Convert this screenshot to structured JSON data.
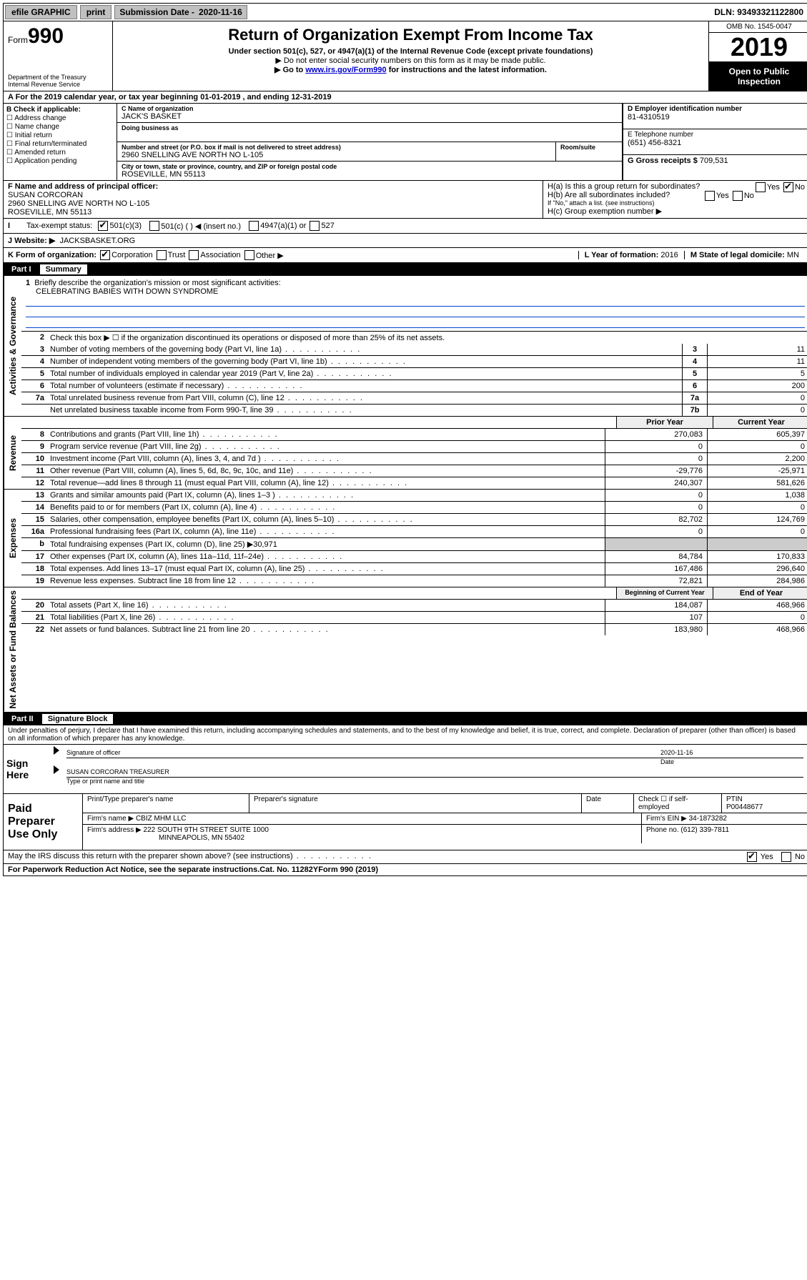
{
  "topbar": {
    "efile": "efile GRAPHIC",
    "print": "print",
    "submission_label": "Submission Date - ",
    "submission_date": "2020-11-16",
    "dln_label": "DLN: ",
    "dln": "93493321122800"
  },
  "header": {
    "form_word": "Form",
    "form_num": "990",
    "dept": "Department of the Treasury\nInternal Revenue Service",
    "title": "Return of Organization Exempt From Income Tax",
    "subtitle": "Under section 501(c), 527, or 4947(a)(1) of the Internal Revenue Code (except private foundations)",
    "note1": "▶ Do not enter social security numbers on this form as it may be made public.",
    "note2_pre": "▶ Go to ",
    "note2_link": "www.irs.gov/Form990",
    "note2_post": " for instructions and the latest information.",
    "omb": "OMB No. 1545-0047",
    "year": "2019",
    "open": "Open to Public Inspection"
  },
  "row_a": "A For the 2019 calendar year, or tax year beginning 01-01-2019   , and ending 12-31-2019",
  "col_b": {
    "label": "B Check if applicable:",
    "items": [
      "Address change",
      "Name change",
      "Initial return",
      "Final return/terminated",
      "Amended return",
      "Application pending"
    ]
  },
  "col_c": {
    "name_lab": "C Name of organization",
    "name": "JACK'S BASKET",
    "dba_lab": "Doing business as",
    "dba": "",
    "addr_lab": "Number and street (or P.O. box if mail is not delivered to street address)",
    "addr": "2960 SNELLING AVE NORTH NO L-105",
    "suite_lab": "Room/suite",
    "city_lab": "City or town, state or province, country, and ZIP or foreign postal code",
    "city": "ROSEVILLE, MN  55113"
  },
  "col_d": {
    "ein_lab": "D Employer identification number",
    "ein": "81-4310519",
    "tel_lab": "E Telephone number",
    "tel": "(651) 456-8321",
    "gross_lab": "G Gross receipts $ ",
    "gross": "709,531"
  },
  "row_f": {
    "f_lab": "F  Name and address of principal officer:",
    "f_name": "SUSAN CORCORAN",
    "f_addr1": "2960 SNELLING AVE NORTH NO L-105",
    "f_addr2": "ROSEVILLE, MN  55113",
    "ha": "H(a)  Is this a group return for subordinates?",
    "hb": "H(b)  Are all subordinates included?",
    "hb_note": "If \"No,\" attach a list. (see instructions)",
    "hc": "H(c)  Group exemption number ▶",
    "yes": "Yes",
    "no": "No"
  },
  "row_i": {
    "label": "Tax-exempt status:",
    "opts": [
      "501(c)(3)",
      "501(c) (  ) ◀ (insert no.)",
      "4947(a)(1) or",
      "527"
    ]
  },
  "row_j": {
    "label": "J   Website: ▶",
    "val": "JACKSBASKET.ORG"
  },
  "row_k": {
    "label": "K Form of organization:",
    "opts": [
      "Corporation",
      "Trust",
      "Association",
      "Other ▶"
    ],
    "l_lab": "L Year of formation: ",
    "l_val": "2016",
    "m_lab": "M State of legal domicile: ",
    "m_val": "MN"
  },
  "part1": {
    "title": "Part I",
    "subtitle": "Summary",
    "q1_lab": "1",
    "q1": "Briefly describe the organization's mission or most significant activities:",
    "q1_val": "CELEBRATING BABIES WITH DOWN SYNDROME",
    "q2_lab": "2",
    "q2": "Check this box ▶ ☐  if the organization discontinued its operations or disposed of more than 25% of its net assets.",
    "rows_small": [
      {
        "n": "3",
        "t": "Number of voting members of the governing body (Part VI, line 1a)",
        "box": "3",
        "v": "11"
      },
      {
        "n": "4",
        "t": "Number of independent voting members of the governing body (Part VI, line 1b)",
        "box": "4",
        "v": "11"
      },
      {
        "n": "5",
        "t": "Total number of individuals employed in calendar year 2019 (Part V, line 2a)",
        "box": "5",
        "v": "5"
      },
      {
        "n": "6",
        "t": "Total number of volunteers (estimate if necessary)",
        "box": "6",
        "v": "200"
      },
      {
        "n": "7a",
        "t": "Total unrelated business revenue from Part VIII, column (C), line 12",
        "box": "7a",
        "v": "0"
      },
      {
        "n": "",
        "t": "Net unrelated business taxable income from Form 990-T, line 39",
        "box": "7b",
        "v": "0"
      }
    ],
    "col_prior": "Prior Year",
    "col_current": "Current Year",
    "rev_rows": [
      {
        "n": "8",
        "t": "Contributions and grants (Part VIII, line 1h)",
        "p": "270,083",
        "c": "605,397"
      },
      {
        "n": "9",
        "t": "Program service revenue (Part VIII, line 2g)",
        "p": "0",
        "c": "0"
      },
      {
        "n": "10",
        "t": "Investment income (Part VIII, column (A), lines 3, 4, and 7d )",
        "p": "0",
        "c": "2,200"
      },
      {
        "n": "11",
        "t": "Other revenue (Part VIII, column (A), lines 5, 6d, 8c, 9c, 10c, and 11e)",
        "p": "-29,776",
        "c": "-25,971"
      },
      {
        "n": "12",
        "t": "Total revenue—add lines 8 through 11 (must equal Part VIII, column (A), line 12)",
        "p": "240,307",
        "c": "581,626"
      }
    ],
    "exp_rows": [
      {
        "n": "13",
        "t": "Grants and similar amounts paid (Part IX, column (A), lines 1–3 )",
        "p": "0",
        "c": "1,038"
      },
      {
        "n": "14",
        "t": "Benefits paid to or for members (Part IX, column (A), line 4)",
        "p": "0",
        "c": "0"
      },
      {
        "n": "15",
        "t": "Salaries, other compensation, employee benefits (Part IX, column (A), lines 5–10)",
        "p": "82,702",
        "c": "124,769"
      },
      {
        "n": "16a",
        "t": "Professional fundraising fees (Part IX, column (A), line 11e)",
        "p": "0",
        "c": "0"
      },
      {
        "n": "b",
        "t": "Total fundraising expenses (Part IX, column (D), line 25) ▶30,971",
        "p": "",
        "c": "",
        "blank": true
      },
      {
        "n": "17",
        "t": "Other expenses (Part IX, column (A), lines 11a–11d, 11f–24e)",
        "p": "84,784",
        "c": "170,833"
      },
      {
        "n": "18",
        "t": "Total expenses. Add lines 13–17 (must equal Part IX, column (A), line 25)",
        "p": "167,486",
        "c": "296,640"
      },
      {
        "n": "19",
        "t": "Revenue less expenses. Subtract line 18 from line 12",
        "p": "72,821",
        "c": "284,986"
      }
    ],
    "col_begin": "Beginning of Current Year",
    "col_end": "End of Year",
    "na_rows": [
      {
        "n": "20",
        "t": "Total assets (Part X, line 16)",
        "p": "184,087",
        "c": "468,966"
      },
      {
        "n": "21",
        "t": "Total liabilities (Part X, line 26)",
        "p": "107",
        "c": "0"
      },
      {
        "n": "22",
        "t": "Net assets or fund balances. Subtract line 21 from line 20",
        "p": "183,980",
        "c": "468,966"
      }
    ],
    "vtabs": {
      "gov": "Activities & Governance",
      "rev": "Revenue",
      "exp": "Expenses",
      "na": "Net Assets or Fund Balances"
    }
  },
  "part2": {
    "title": "Part II",
    "subtitle": "Signature Block",
    "perjury": "Under penalties of perjury, I declare that I have examined this return, including accompanying schedules and statements, and to the best of my knowledge and belief, it is true, correct, and complete. Declaration of preparer (other than officer) is based on all information of which preparer has any knowledge.",
    "sign_here": "Sign Here",
    "sig_officer": "Signature of officer",
    "sig_date": "2020-11-16",
    "date_lab": "Date",
    "typed_name": "SUSAN CORCORAN  TREASURER",
    "typed_lab": "Type or print name and title",
    "paid": "Paid Preparer Use Only",
    "prep_name_lab": "Print/Type preparer's name",
    "prep_sig_lab": "Preparer's signature",
    "prep_date_lab": "Date",
    "check_self": "Check ☐ if self-employed",
    "ptin_lab": "PTIN",
    "ptin": "P00448677",
    "firm_name_lab": "Firm's name    ▶ ",
    "firm_name": "CBIZ MHM LLC",
    "firm_ein_lab": "Firm's EIN ▶ ",
    "firm_ein": "34-1873282",
    "firm_addr_lab": "Firm's address ▶ ",
    "firm_addr": "222 SOUTH 9TH STREET SUITE 1000",
    "firm_city": "MINNEAPOLIS, MN  55402",
    "phone_lab": "Phone no. ",
    "phone": "(612) 339-7811",
    "discuss": "May the IRS discuss this return with the preparer shown above? (see instructions)",
    "yes": "Yes",
    "no": "No"
  },
  "footer": {
    "pra": "For Paperwork Reduction Act Notice, see the separate instructions.",
    "cat": "Cat. No. 11282Y",
    "form": "Form 990 (2019)"
  }
}
